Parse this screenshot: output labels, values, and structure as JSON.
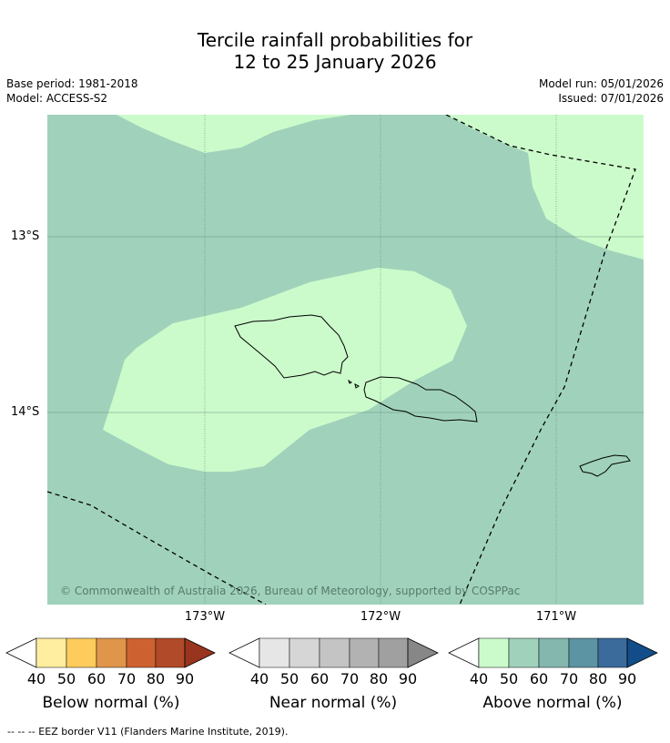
{
  "title_line1": "Tercile rainfall probabilities for",
  "title_line2": "12 to 25 January 2026",
  "base_period": "Base period: 1981-2018",
  "model": "Model: ACCESS-S2",
  "model_run": "Model run: 05/01/2026",
  "issued": "Issued: 07/01/2026",
  "map": {
    "copyright": "© Commonwealth of Australia 2026, Bureau of Meteorology, supported by COSPPac",
    "lat_labels": [
      "13°S",
      "14°S"
    ],
    "lon_labels": [
      "173°W",
      "172°W",
      "171°W"
    ]
  },
  "legend": {
    "below": {
      "title": "Below normal (%)",
      "ticks": [
        "40",
        "50",
        "60",
        "70",
        "80",
        "90"
      ],
      "colors": [
        "#ffeda0",
        "#fecc5c",
        "#e0964a",
        "#cd6230",
        "#b04a28",
        "#99351e"
      ]
    },
    "near": {
      "title": "Near normal (%)",
      "ticks": [
        "40",
        "50",
        "60",
        "70",
        "80",
        "90"
      ],
      "colors": [
        "#e6e6e6",
        "#d6d6d6",
        "#c4c4c4",
        "#b2b2b2",
        "#a0a0a0",
        "#878787"
      ]
    },
    "above": {
      "title": "Above normal (%)",
      "ticks": [
        "40",
        "50",
        "60",
        "70",
        "80",
        "90"
      ],
      "colors": [
        "#ccfbcb",
        "#a0d2bb",
        "#84b7ad",
        "#5c94a4",
        "#3a6b9b",
        "#134d89"
      ]
    }
  },
  "footnote": "--  --  -- EEZ border V11 (Flanders Marine Institute, 2019)."
}
